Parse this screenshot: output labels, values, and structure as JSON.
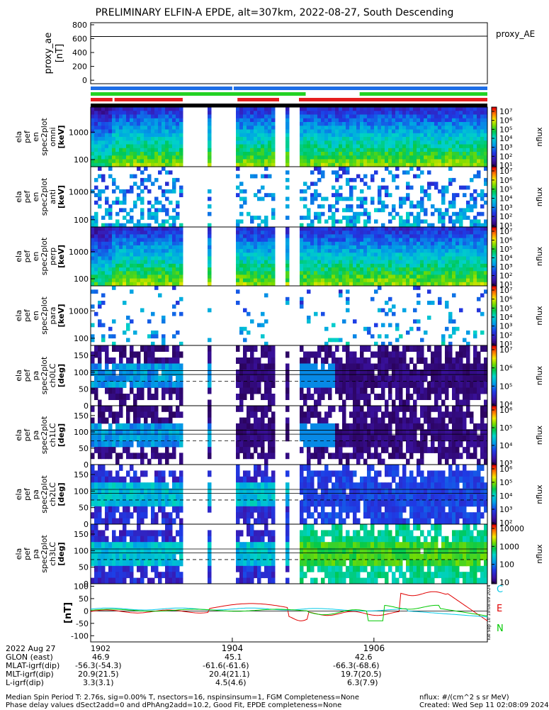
{
  "title": "PRELIMINARY ELFIN-A EPDE, alt=307km, 2022-08-27, South Descending",
  "chart_data": [
    {
      "type": "line",
      "panel": "proxy_ae",
      "ylabel": [
        "proxy_ae",
        "[nT]"
      ],
      "series_label": "proxy_AE",
      "ylim": [
        -50,
        830
      ],
      "yticks": [
        "800",
        "600",
        "400",
        "200",
        "0"
      ],
      "ytick_values": [
        800,
        600,
        400,
        200,
        0
      ],
      "x": [
        0.0,
        1.0
      ],
      "values": [
        630,
        635
      ]
    },
    {
      "type": "heatmap",
      "panel": "en spec 0",
      "ylabel": [
        "ela",
        "pef",
        "en",
        "spec2plot",
        "omni",
        "[keV]"
      ],
      "yticks": [
        "1000",
        "100"
      ],
      "colorbar_label": "nflux",
      "colorbar_ticks": [
        "10⁷",
        "10⁶",
        "10⁵",
        "10⁴",
        "10³",
        "10²",
        "10¹"
      ]
    },
    {
      "type": "heatmap",
      "panel": "en spec 1",
      "ylabel": [
        "ela",
        "pef",
        "en",
        "spec2plot",
        "anti",
        "[keV]"
      ],
      "yticks": [
        "1000",
        "100"
      ],
      "colorbar_label": "nflux",
      "colorbar_ticks": [
        "10⁷",
        "10⁶",
        "10⁵",
        "10⁴",
        "10³",
        "10²",
        "10¹"
      ]
    },
    {
      "type": "heatmap",
      "panel": "en spec 2",
      "ylabel": [
        "ela",
        "pef",
        "en",
        "spec2plot",
        "perp",
        "[keV]"
      ],
      "yticks": [
        "1000",
        "100"
      ],
      "colorbar_label": "nflux",
      "colorbar_ticks": [
        "10⁷",
        "10⁶",
        "10⁵",
        "10⁴",
        "10³",
        "10²",
        "10¹"
      ]
    },
    {
      "type": "heatmap",
      "panel": "en spec 3",
      "ylabel": [
        "ela",
        "pef",
        "en",
        "spec2plot",
        "para",
        "[keV]"
      ],
      "yticks": [
        "1000",
        "100"
      ],
      "colorbar_label": "nflux",
      "colorbar_ticks": [
        "10⁷",
        "10⁶",
        "10⁵",
        "10⁴",
        "10³",
        "10²",
        "10¹"
      ]
    },
    {
      "type": "heatmap",
      "panel": "pa ch0",
      "ylabel": [
        "ela",
        "pef",
        "pa",
        "spec2plot",
        "ch0LC",
        "[deg]"
      ],
      "yticks": [
        "150",
        "100",
        "50",
        "0"
      ],
      "colorbar_label": "nflux",
      "colorbar_ticks": [
        "10⁷",
        "10⁶",
        "10⁵",
        "10⁴"
      ]
    },
    {
      "type": "heatmap",
      "panel": "pa ch1",
      "ylabel": [
        "ela",
        "pef",
        "pa",
        "spec2plot",
        "ch1LC",
        "[deg]"
      ],
      "yticks": [
        "150",
        "100",
        "50",
        "0"
      ],
      "colorbar_label": "nflux",
      "colorbar_ticks": [
        "10⁶",
        "10⁵",
        "10⁴",
        "10³"
      ]
    },
    {
      "type": "heatmap",
      "panel": "pa ch2",
      "ylabel": [
        "ela",
        "pef",
        "pa",
        "spec2plot",
        "ch2LC",
        "[deg]"
      ],
      "yticks": [
        "150",
        "100",
        "50",
        "0"
      ],
      "colorbar_label": "nflux",
      "colorbar_ticks": [
        "10⁶",
        "10⁵",
        "10⁴",
        "10³",
        "10²"
      ]
    },
    {
      "type": "heatmap",
      "panel": "pa ch3",
      "ylabel": [
        "ela",
        "pef",
        "pa",
        "spec2plot",
        "ch3LC",
        "[deg]"
      ],
      "yticks": [
        "150",
        "100",
        "50",
        "0"
      ],
      "colorbar_label": "nflux",
      "colorbar_ticks": [
        "10000",
        "1000",
        "100",
        "10"
      ]
    },
    {
      "type": "line",
      "panel": "magnetic field",
      "ylabel": [
        "[nT]"
      ],
      "ylim": [
        -125,
        110
      ],
      "yticks": [
        "100",
        "50",
        "0",
        "-50",
        "-100"
      ],
      "ytick_values": [
        100,
        50,
        0,
        -50,
        -100
      ],
      "legend": [
        "C",
        "E",
        "N"
      ],
      "series_colors": {
        "C": "#00c8e6",
        "E": "#e00000",
        "N": "#00c800"
      },
      "xticks": [
        "1902",
        "1904",
        "1906"
      ]
    }
  ],
  "colors": {
    "bar_blue": "#1e6ee6",
    "bar_green": "#23d223",
    "bar_red": "#e61e1e"
  },
  "footer": {
    "rows": [
      {
        "label": "2022 Aug 27",
        "v": [
          "1902",
          "",
          ""
        ]
      },
      {
        "label": "GLON (east)",
        "v": [
          "46.9",
          "45.1",
          "42.6"
        ]
      },
      {
        "label": "MLAT-igrf(dip)",
        "v": [
          "-56.3(-54.3)",
          "-61.6(-61.6)",
          "-66.3(-68.6)"
        ]
      },
      {
        "label": "MLT-igrf(dip)",
        "v": [
          "20.9(21.5)",
          "20.4(21.1)",
          "19.7(20.5)"
        ]
      },
      {
        "label": "L-igrf(dip)",
        "v": [
          "3.3(3.1)",
          "4.5(4.6)",
          "6.3(7.9)"
        ]
      }
    ],
    "note1": "Median Spin Period T: 2.76s, sig=0.00% T, nsectors=16, nspinsinsum=1, FGM Completeness=None",
    "note2": "Phase delay values dSect2add=0 and dPhAng2add=10.2, Good Fit, EPDE completeness=None",
    "nflux_units": "nflux: #/(cm^2 s sr MeV)",
    "created": "Created: Wed Sep 11 02:08:09 2024",
    "side_stamp": "Tue Sep 10 19:08:09 2024"
  }
}
